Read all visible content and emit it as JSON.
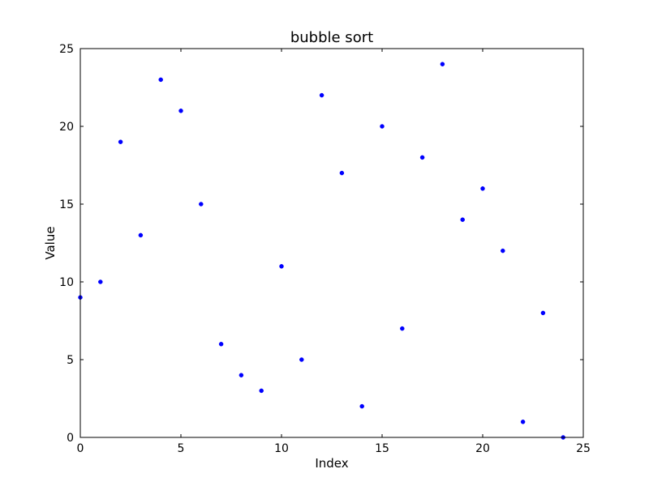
{
  "chart_data": {
    "type": "scatter",
    "title": "bubble sort",
    "xlabel": "Index",
    "ylabel": "Value",
    "xlim": [
      0,
      25
    ],
    "ylim": [
      0,
      25
    ],
    "xticks": [
      0,
      5,
      10,
      15,
      20,
      25
    ],
    "yticks": [
      0,
      5,
      10,
      15,
      20,
      25
    ],
    "grid": false,
    "marker_color": "#0000ff",
    "points": [
      {
        "x": 0,
        "y": 9
      },
      {
        "x": 1,
        "y": 10
      },
      {
        "x": 2,
        "y": 19
      },
      {
        "x": 3,
        "y": 13
      },
      {
        "x": 4,
        "y": 23
      },
      {
        "x": 5,
        "y": 21
      },
      {
        "x": 6,
        "y": 15
      },
      {
        "x": 7,
        "y": 6
      },
      {
        "x": 8,
        "y": 4
      },
      {
        "x": 9,
        "y": 3
      },
      {
        "x": 10,
        "y": 11
      },
      {
        "x": 11,
        "y": 5
      },
      {
        "x": 12,
        "y": 22
      },
      {
        "x": 13,
        "y": 17
      },
      {
        "x": 14,
        "y": 2
      },
      {
        "x": 15,
        "y": 20
      },
      {
        "x": 16,
        "y": 7
      },
      {
        "x": 17,
        "y": 18
      },
      {
        "x": 18,
        "y": 24
      },
      {
        "x": 19,
        "y": 14
      },
      {
        "x": 20,
        "y": 16
      },
      {
        "x": 21,
        "y": 12
      },
      {
        "x": 22,
        "y": 1
      },
      {
        "x": 23,
        "y": 8
      },
      {
        "x": 24,
        "y": 0
      }
    ]
  }
}
